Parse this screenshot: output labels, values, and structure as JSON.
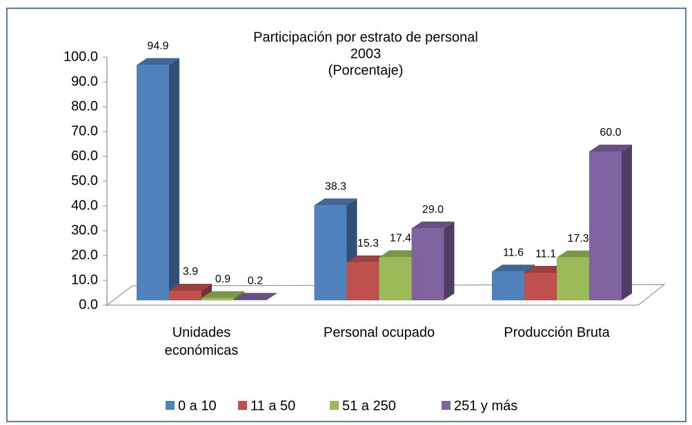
{
  "chart_data": {
    "type": "bar3d",
    "title": "Participación por estrato de personal",
    "subtitle": [
      "2003",
      "(Porcentaje)"
    ],
    "categories": [
      "Unidades económicas",
      "Personal ocupado",
      "Producción Bruta"
    ],
    "series": [
      {
        "name": "0 a 10",
        "color": "#4f81bd",
        "values": [
          94.9,
          38.3,
          11.6
        ],
        "value_labels": [
          "94.9",
          "38.3",
          "11.6"
        ]
      },
      {
        "name": "11 a 50",
        "color": "#c0504d",
        "values": [
          3.9,
          15.3,
          11.1
        ],
        "value_labels": [
          "3.9",
          "15.3",
          "11.1"
        ]
      },
      {
        "name": "51 a 250",
        "color": "#9bbb59",
        "values": [
          0.9,
          17.4,
          17.3
        ],
        "value_labels": [
          "0.9",
          "17.4",
          "17.3"
        ]
      },
      {
        "name": "251 y más",
        "color": "#8064a2",
        "values": [
          0.2,
          29.0,
          60.0
        ],
        "value_labels": [
          "0.2",
          "29.0",
          "60.0"
        ]
      }
    ],
    "ylim": [
      0,
      100
    ],
    "yticks": [
      {
        "value": 0,
        "label": "0.0"
      },
      {
        "value": 10,
        "label": "10.0"
      },
      {
        "value": 20,
        "label": "20.0"
      },
      {
        "value": 30,
        "label": "30.0"
      },
      {
        "value": 40,
        "label": "40.0"
      },
      {
        "value": 50,
        "label": "50.0"
      },
      {
        "value": 60,
        "label": "60.0"
      },
      {
        "value": 70,
        "label": "70.0"
      },
      {
        "value": 80,
        "label": "80.0"
      },
      {
        "value": 90,
        "label": "90.0"
      },
      {
        "value": 100,
        "label": "100.0"
      }
    ],
    "legend": "bottom"
  }
}
